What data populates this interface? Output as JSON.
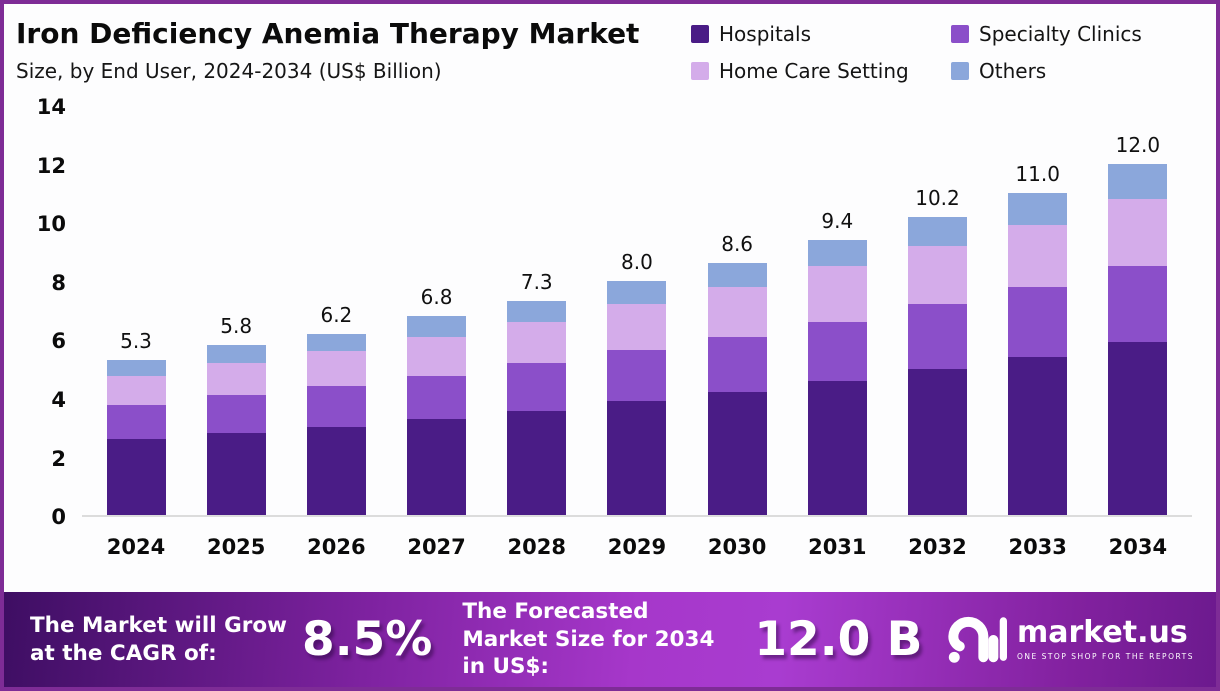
{
  "chart_data": {
    "type": "bar",
    "stacked": true,
    "title": "Iron Deficiency Anemia Therapy Market",
    "subtitle": "Size, by End User, 2024-2034 (US$ Billion)",
    "categories": [
      "2024",
      "2025",
      "2026",
      "2027",
      "2028",
      "2029",
      "2030",
      "2031",
      "2032",
      "2033",
      "2034"
    ],
    "series": [
      {
        "name": "Hospitals",
        "color": "#4A1C86",
        "values": [
          2.6,
          2.8,
          3.0,
          3.3,
          3.55,
          3.9,
          4.2,
          4.6,
          5.0,
          5.4,
          5.9
        ]
      },
      {
        "name": "Specialty Clinics",
        "color": "#8B4FC9",
        "values": [
          1.15,
          1.3,
          1.4,
          1.45,
          1.65,
          1.75,
          1.9,
          2.0,
          2.2,
          2.4,
          2.6
        ]
      },
      {
        "name": "Home Care Setting",
        "color": "#D4ACEA",
        "values": [
          1.0,
          1.1,
          1.2,
          1.35,
          1.4,
          1.55,
          1.7,
          1.9,
          2.0,
          2.1,
          2.3
        ]
      },
      {
        "name": "Others",
        "color": "#8BA7DB",
        "values": [
          0.55,
          0.6,
          0.6,
          0.7,
          0.7,
          0.8,
          0.8,
          0.9,
          1.0,
          1.1,
          1.2
        ]
      }
    ],
    "totals": [
      5.3,
      5.8,
      6.2,
      6.8,
      7.3,
      8.0,
      8.6,
      9.4,
      10.2,
      11.0,
      12.0
    ],
    "xlabel": "",
    "ylabel": "",
    "ylim": [
      0,
      14
    ],
    "yticks": [
      0,
      2,
      4,
      6,
      8,
      10,
      12,
      14
    ],
    "grid": false,
    "legend_position": "top-right"
  },
  "footer": {
    "cagr_label": "The Market will Grow at the CAGR of:",
    "cagr_value": "8.5%",
    "forecast_label": "The Forecasted Market Size for 2034 in US$:",
    "forecast_value": "12.0 B",
    "brand_name": "market.us",
    "brand_tagline": "ONE STOP SHOP FOR THE REPORTS"
  },
  "colors": {
    "frame_border": "#7E2C96",
    "banner_gradient_left": "#3E0E63",
    "banner_gradient_mid": "#A93CD0",
    "banner_gradient_right": "#6C1A8E",
    "axis_line": "#DCDCDC",
    "text": "#0B0B0B"
  }
}
